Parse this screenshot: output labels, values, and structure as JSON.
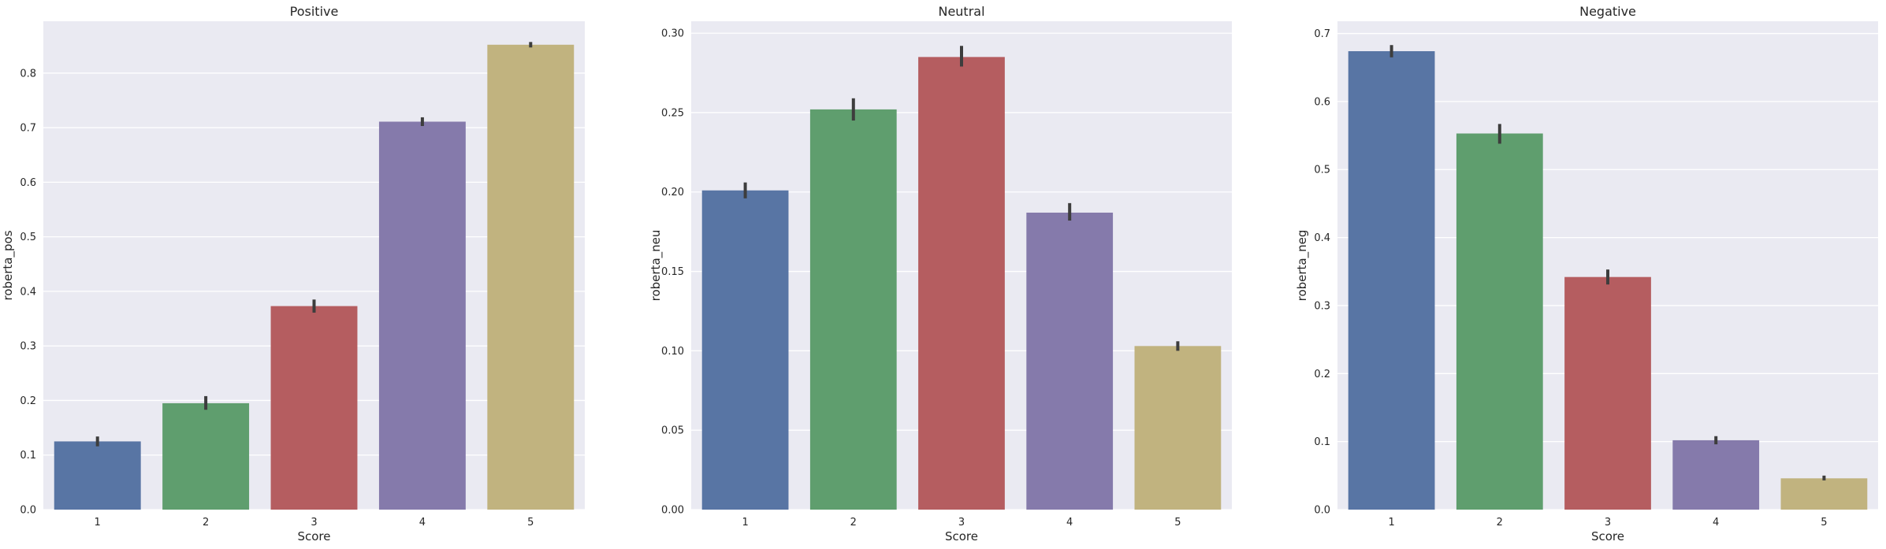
{
  "chart_data": [
    {
      "type": "bar",
      "title": "Positive",
      "xlabel": "Score",
      "ylabel": "roberta_pos",
      "categories": [
        "1",
        "2",
        "3",
        "4",
        "5"
      ],
      "values": [
        0.125,
        0.195,
        0.373,
        0.711,
        0.852
      ],
      "error_low": [
        0.116,
        0.183,
        0.361,
        0.703,
        0.847
      ],
      "error_high": [
        0.134,
        0.208,
        0.385,
        0.719,
        0.857
      ],
      "colors": [
        "#5875a4",
        "#5f9e6e",
        "#b55d60",
        "#857aab",
        "#c1b37f"
      ],
      "ylim": [
        0,
        0.895
      ],
      "yticks": [
        0.0,
        0.1,
        0.2,
        0.3,
        0.4,
        0.5,
        0.6,
        0.7,
        0.8
      ],
      "ytick_labels": [
        "0.0",
        "0.1",
        "0.2",
        "0.3",
        "0.4",
        "0.5",
        "0.6",
        "0.7",
        "0.8"
      ],
      "grid": true,
      "error_bars": true
    },
    {
      "type": "bar",
      "title": "Neutral",
      "xlabel": "Score",
      "ylabel": "roberta_neu",
      "categories": [
        "1",
        "2",
        "3",
        "4",
        "5"
      ],
      "values": [
        0.201,
        0.252,
        0.285,
        0.187,
        0.103
      ],
      "error_low": [
        0.196,
        0.245,
        0.279,
        0.182,
        0.1
      ],
      "error_high": [
        0.206,
        0.259,
        0.292,
        0.193,
        0.106
      ],
      "colors": [
        "#5875a4",
        "#5f9e6e",
        "#b55d60",
        "#857aab",
        "#c1b37f"
      ],
      "ylim": [
        0,
        0.3075
      ],
      "yticks": [
        0.0,
        0.05,
        0.1,
        0.15,
        0.2,
        0.25,
        0.3
      ],
      "ytick_labels": [
        "0.00",
        "0.05",
        "0.10",
        "0.15",
        "0.20",
        "0.25",
        "0.30"
      ],
      "grid": true,
      "error_bars": true
    },
    {
      "type": "bar",
      "title": "Negative",
      "xlabel": "Score",
      "ylabel": "roberta_neg",
      "categories": [
        "1",
        "2",
        "3",
        "4",
        "5"
      ],
      "values": [
        0.674,
        0.553,
        0.342,
        0.102,
        0.046
      ],
      "error_low": [
        0.665,
        0.538,
        0.331,
        0.096,
        0.043
      ],
      "error_high": [
        0.683,
        0.567,
        0.353,
        0.108,
        0.05
      ],
      "colors": [
        "#5875a4",
        "#5f9e6e",
        "#b55d60",
        "#857aab",
        "#c1b37f"
      ],
      "ylim": [
        0,
        0.718
      ],
      "yticks": [
        0.0,
        0.1,
        0.2,
        0.3,
        0.4,
        0.5,
        0.6,
        0.7
      ],
      "ytick_labels": [
        "0.0",
        "0.1",
        "0.2",
        "0.3",
        "0.4",
        "0.5",
        "0.6",
        "0.7"
      ],
      "grid": true,
      "error_bars": true
    }
  ]
}
